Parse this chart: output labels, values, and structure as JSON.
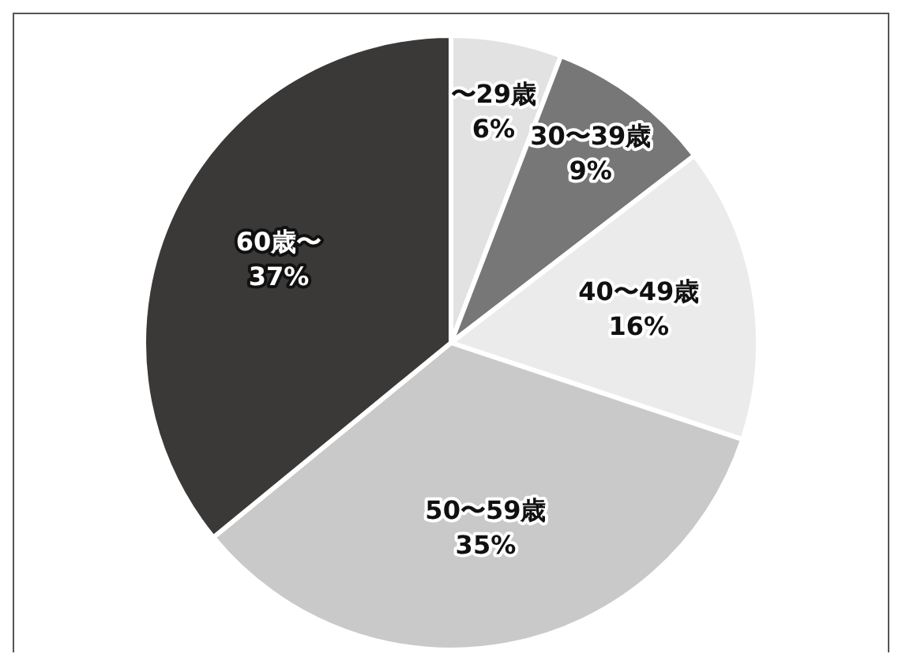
{
  "chart_data": {
    "type": "pie",
    "categories": [
      "〜29歳",
      "30〜39歳",
      "40〜49歳",
      "50〜59歳",
      "60歳〜"
    ],
    "values": [
      6,
      9,
      16,
      35,
      37
    ],
    "value_labels": [
      "6%",
      "9%",
      "16%",
      "35%",
      "37%"
    ],
    "colors": [
      "#e2e2e2",
      "#777777",
      "#ebebeb",
      "#c9c9c9",
      "#3b3838"
    ],
    "legend": false
  }
}
